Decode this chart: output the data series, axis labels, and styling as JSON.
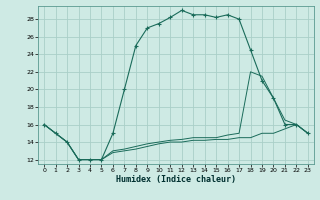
{
  "xlabel": "Humidex (Indice chaleur)",
  "bg_color": "#ceeae4",
  "grid_color": "#aacfc8",
  "line_color": "#1a6b5a",
  "xlim": [
    -0.5,
    23.5
  ],
  "ylim": [
    11.5,
    29.5
  ],
  "yticks": [
    12,
    14,
    16,
    18,
    20,
    22,
    24,
    26,
    28
  ],
  "xticks": [
    0,
    1,
    2,
    3,
    4,
    5,
    6,
    7,
    8,
    9,
    10,
    11,
    12,
    13,
    14,
    15,
    16,
    17,
    18,
    19,
    20,
    21,
    22,
    23
  ],
  "series1_x": [
    0,
    1,
    2,
    3,
    4,
    5,
    6,
    7,
    8,
    9,
    10,
    11,
    12,
    13,
    14,
    15,
    16,
    17,
    18,
    19,
    20,
    21,
    22,
    23
  ],
  "series1_y": [
    16,
    15,
    14,
    12,
    12,
    12,
    15,
    20,
    25,
    27,
    27.5,
    28.2,
    29,
    28.5,
    28.5,
    28.2,
    28.5,
    28,
    24.5,
    21,
    19,
    16,
    16,
    15
  ],
  "series2_x": [
    0,
    1,
    2,
    3,
    4,
    5,
    6,
    7,
    8,
    9,
    10,
    11,
    12,
    13,
    14,
    15,
    16,
    17,
    18,
    19,
    20,
    21,
    22,
    23
  ],
  "series2_y": [
    16,
    15,
    14,
    12,
    12,
    12,
    13,
    13.2,
    13.5,
    13.8,
    14,
    14.2,
    14.3,
    14.5,
    14.5,
    14.5,
    14.8,
    15,
    22,
    21.5,
    19,
    16.5,
    16,
    15
  ],
  "series3_x": [
    0,
    1,
    2,
    3,
    4,
    5,
    6,
    7,
    8,
    9,
    10,
    11,
    12,
    13,
    14,
    15,
    16,
    17,
    18,
    19,
    20,
    21,
    22,
    23
  ],
  "series3_y": [
    16,
    15,
    14,
    12,
    12,
    12,
    12.8,
    13,
    13.2,
    13.5,
    13.8,
    14,
    14,
    14.2,
    14.2,
    14.3,
    14.3,
    14.5,
    14.5,
    15,
    15,
    15.5,
    16,
    15
  ]
}
